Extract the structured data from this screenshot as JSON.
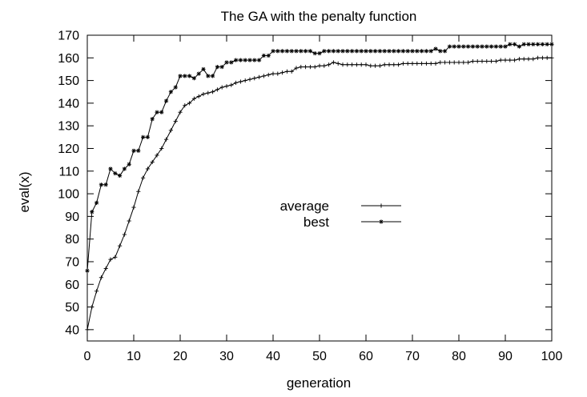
{
  "chart_data": {
    "type": "line",
    "title": "The GA with the penalty function",
    "xlabel": "generation",
    "ylabel": "eval(x)",
    "xlim": [
      0,
      100
    ],
    "ylim": [
      35,
      170
    ],
    "xticks": [
      0,
      10,
      20,
      30,
      40,
      50,
      60,
      70,
      80,
      90,
      100
    ],
    "yticks": [
      40,
      50,
      60,
      70,
      80,
      90,
      100,
      110,
      120,
      130,
      140,
      150,
      160,
      170
    ],
    "grid": false,
    "legend_position": "center",
    "series": [
      {
        "name": "average",
        "marker": "plus",
        "color": "#000000",
        "x": [
          0,
          1,
          2,
          3,
          4,
          5,
          6,
          7,
          8,
          9,
          10,
          11,
          12,
          13,
          14,
          15,
          16,
          17,
          18,
          19,
          20,
          21,
          22,
          23,
          24,
          25,
          26,
          27,
          28,
          29,
          30,
          31,
          32,
          33,
          34,
          35,
          36,
          37,
          38,
          39,
          40,
          41,
          42,
          43,
          44,
          45,
          46,
          47,
          48,
          49,
          50,
          51,
          52,
          53,
          54,
          55,
          56,
          57,
          58,
          59,
          60,
          61,
          62,
          63,
          64,
          65,
          66,
          67,
          68,
          69,
          70,
          71,
          72,
          73,
          74,
          75,
          76,
          77,
          78,
          79,
          80,
          81,
          82,
          83,
          84,
          85,
          86,
          87,
          88,
          89,
          90,
          91,
          92,
          93,
          94,
          95,
          96,
          97,
          98,
          99,
          100
        ],
        "values": [
          40,
          50,
          57,
          63,
          67,
          71,
          72,
          77,
          82,
          88,
          94,
          101,
          107,
          111,
          114,
          117,
          120,
          124,
          128,
          132,
          136,
          139,
          140,
          142,
          143,
          144,
          144.5,
          145,
          146,
          147,
          147.5,
          148,
          149,
          149.5,
          150,
          150.5,
          151,
          151.5,
          152,
          152.5,
          153,
          153,
          153.5,
          154,
          154,
          155.5,
          156,
          156,
          156,
          156,
          156.5,
          156.5,
          157,
          158,
          157.5,
          157,
          157,
          157,
          157,
          157,
          157,
          156.5,
          156.5,
          156.5,
          157,
          157,
          157,
          157,
          157.5,
          157.5,
          157.5,
          157.5,
          157.5,
          157.5,
          157.5,
          157.5,
          158,
          158,
          158,
          158,
          158,
          158,
          158,
          158.5,
          158.5,
          158.5,
          158.5,
          158.5,
          158.5,
          159,
          159,
          159,
          159,
          159.5,
          159.5,
          159.5,
          159.5,
          160,
          160,
          160,
          160
        ]
      },
      {
        "name": "best",
        "marker": "asterisk",
        "color": "#000000",
        "x": [
          0,
          1,
          2,
          3,
          4,
          5,
          6,
          7,
          8,
          9,
          10,
          11,
          12,
          13,
          14,
          15,
          16,
          17,
          18,
          19,
          20,
          21,
          22,
          23,
          24,
          25,
          26,
          27,
          28,
          29,
          30,
          31,
          32,
          33,
          34,
          35,
          36,
          37,
          38,
          39,
          40,
          41,
          42,
          43,
          44,
          45,
          46,
          47,
          48,
          49,
          50,
          51,
          52,
          53,
          54,
          55,
          56,
          57,
          58,
          59,
          60,
          61,
          62,
          63,
          64,
          65,
          66,
          67,
          68,
          69,
          70,
          71,
          72,
          73,
          74,
          75,
          76,
          77,
          78,
          79,
          80,
          81,
          82,
          83,
          84,
          85,
          86,
          87,
          88,
          89,
          90,
          91,
          92,
          93,
          94,
          95,
          96,
          97,
          98,
          99,
          100
        ],
        "values": [
          66,
          92,
          96,
          104,
          104,
          111,
          109,
          108,
          111,
          113,
          119,
          119,
          125,
          125,
          133,
          136,
          136,
          141,
          145,
          147,
          152,
          152,
          152,
          151,
          153,
          155,
          152,
          152,
          156,
          156,
          158,
          158,
          159,
          159,
          159,
          159,
          159,
          159,
          161,
          161,
          163,
          163,
          163,
          163,
          163,
          163,
          163,
          163,
          163,
          162,
          162,
          163,
          163,
          163,
          163,
          163,
          163,
          163,
          163,
          163,
          163,
          163,
          163,
          163,
          163,
          163,
          163,
          163,
          163,
          163,
          163,
          163,
          163,
          163,
          163,
          164,
          163,
          163,
          165,
          165,
          165,
          165,
          165,
          165,
          165,
          165,
          165,
          165,
          165,
          165,
          165,
          166,
          166,
          165,
          166,
          166,
          166,
          166,
          166,
          166,
          166
        ]
      }
    ]
  }
}
